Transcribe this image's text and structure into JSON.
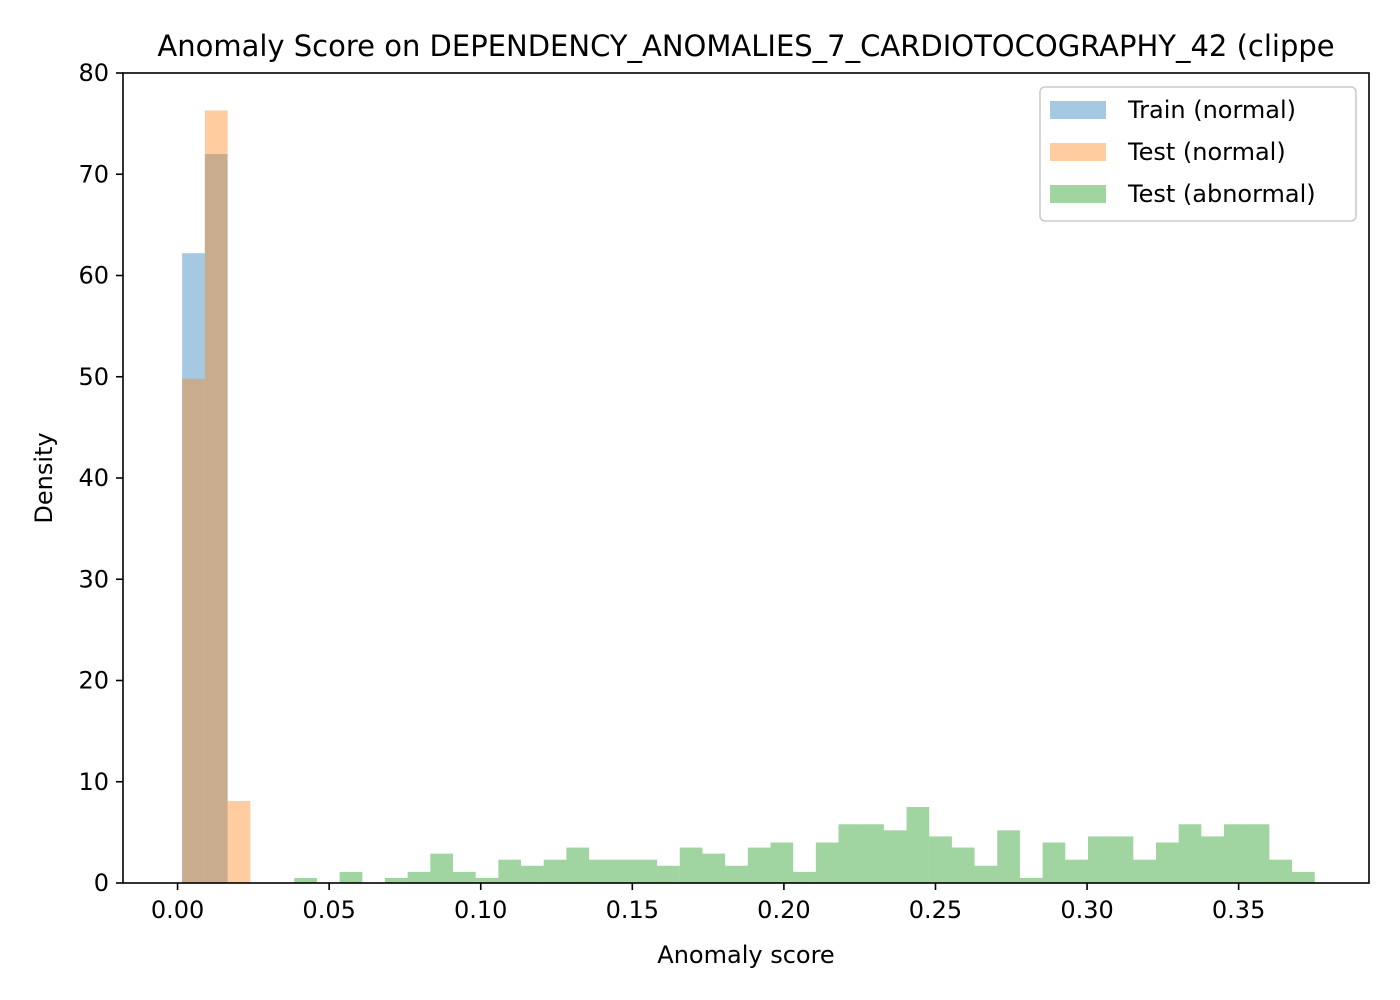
{
  "chart_data": {
    "type": "bar",
    "subtype": "histogram",
    "title": "Anomaly Score on DEPENDENCY_ANOMALIES_7_CARDIOTOCOGRAPHY_42 (clippe",
    "xlabel": "Anomaly score",
    "ylabel": "Density",
    "xlim": [
      -0.018,
      0.393
    ],
    "ylim": [
      0,
      80
    ],
    "x_ticks": [
      0.0,
      0.05,
      0.1,
      0.15,
      0.2,
      0.25,
      0.3,
      0.35
    ],
    "x_tick_labels": [
      "0.00",
      "0.05",
      "0.10",
      "0.15",
      "0.20",
      "0.25",
      "0.30",
      "0.35"
    ],
    "y_ticks": [
      0,
      10,
      20,
      30,
      40,
      50,
      60,
      70,
      80
    ],
    "y_tick_labels": [
      "0",
      "10",
      "20",
      "30",
      "40",
      "50",
      "60",
      "70",
      "80"
    ],
    "grid": false,
    "legend_position": "top-right",
    "series": [
      {
        "name": "Train (normal)",
        "color": "#1f77b4",
        "opacity": 0.4,
        "bins": [
          {
            "x0": 0.0015,
            "x1": 0.009,
            "value": 62.2
          },
          {
            "x0": 0.009,
            "x1": 0.0165,
            "value": 72.0
          }
        ]
      },
      {
        "name": "Test (normal)",
        "color": "#ff7f0e",
        "opacity": 0.4,
        "bins": [
          {
            "x0": 0.0015,
            "x1": 0.009,
            "value": 49.8
          },
          {
            "x0": 0.009,
            "x1": 0.0165,
            "value": 76.3
          },
          {
            "x0": 0.0165,
            "x1": 0.024,
            "value": 8.1
          }
        ]
      },
      {
        "name": "Test (abnormal)",
        "color": "#2ca02c",
        "opacity": 0.45,
        "bin_start": 0.0385,
        "bin_width": 0.00748,
        "values": [
          0.5,
          0.0,
          1.1,
          0.0,
          0.5,
          1.1,
          2.9,
          1.1,
          0.5,
          2.3,
          1.7,
          2.3,
          3.5,
          2.3,
          2.3,
          2.3,
          1.7,
          3.5,
          2.9,
          1.7,
          3.5,
          4.0,
          1.1,
          4.0,
          5.8,
          5.8,
          5.2,
          7.5,
          4.6,
          3.5,
          1.7,
          5.2,
          0.5,
          4.0,
          2.3,
          4.6,
          4.6,
          2.3,
          4.0,
          5.8,
          4.6,
          5.8,
          5.8,
          2.3,
          1.1
        ]
      }
    ]
  }
}
